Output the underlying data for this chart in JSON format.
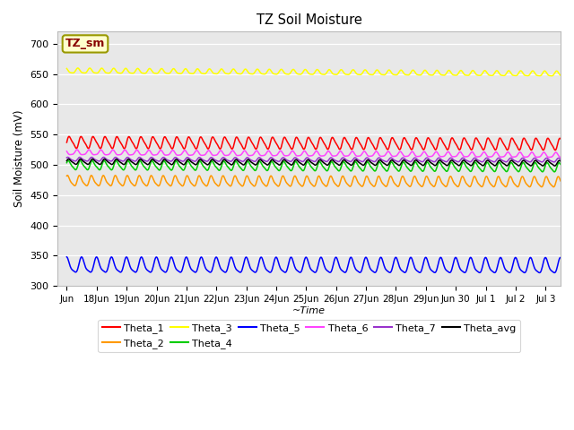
{
  "title": "TZ Soil Moisture",
  "xlabel": "~Time",
  "ylabel": "Soil Moisture (mV)",
  "ylim": [
    300,
    720
  ],
  "yticks": [
    300,
    350,
    400,
    450,
    500,
    550,
    600,
    650,
    700
  ],
  "bg_color": "#e8e8e8",
  "legend_box_label": "TZ_sm",
  "legend_box_color": "#ffffcc",
  "legend_box_border": "#999900",
  "legend_box_text_color": "#880000",
  "series": [
    {
      "name": "Theta_1",
      "color": "#ff0000",
      "base": 537,
      "amp": 9,
      "freq": 2.5,
      "trend": -3.0,
      "phase": 0.0
    },
    {
      "name": "Theta_2",
      "color": "#ff9900",
      "base": 473,
      "amp": 8,
      "freq": 2.5,
      "trend": -2.0,
      "phase": 1.0
    },
    {
      "name": "Theta_3",
      "color": "#ffff00",
      "base": 655,
      "amp": 4,
      "freq": 2.5,
      "trend": -5.0,
      "phase": 2.0
    },
    {
      "name": "Theta_4",
      "color": "#00cc00",
      "base": 499,
      "amp": 7,
      "freq": 2.5,
      "trend": -3.5,
      "phase": 0.5
    },
    {
      "name": "Theta_5",
      "color": "#0000ff",
      "base": 333,
      "amp": 12,
      "freq": 2.0,
      "trend": -1.0,
      "phase": 1.5
    },
    {
      "name": "Theta_6",
      "color": "#ff44ff",
      "base": 520,
      "amp": 4,
      "freq": 2.5,
      "trend": -4.5,
      "phase": 2.5
    },
    {
      "name": "Theta_7",
      "color": "#9933cc",
      "base": 509,
      "amp": 3,
      "freq": 2.5,
      "trend": -1.5,
      "phase": 0.8
    },
    {
      "name": "Theta_avg",
      "color": "#000000",
      "base": 505,
      "amp": 4,
      "freq": 2.5,
      "trend": -2.5,
      "phase": 0.3
    }
  ],
  "n_points": 1000,
  "duration_days": 16.5,
  "tick_positions": [
    17,
    18,
    19,
    20,
    21,
    22,
    23,
    24,
    25,
    26,
    27,
    28,
    29,
    30,
    31,
    32,
    33
  ],
  "tick_labels": [
    "Jun",
    "18Jun",
    "19Jun",
    "20Jun",
    "21Jun",
    "22Jun",
    "23Jun",
    "24Jun",
    "25Jun",
    "26Jun",
    "27Jun",
    "28Jun",
    "29Jun",
    "Jun 30",
    "Jul 1",
    "Jul 2",
    "Jul 3"
  ],
  "xlim": [
    16.7,
    33.5
  ],
  "line_width": 1.1,
  "legend_ncol": 6,
  "figsize": [
    6.4,
    4.8
  ],
  "dpi": 100
}
